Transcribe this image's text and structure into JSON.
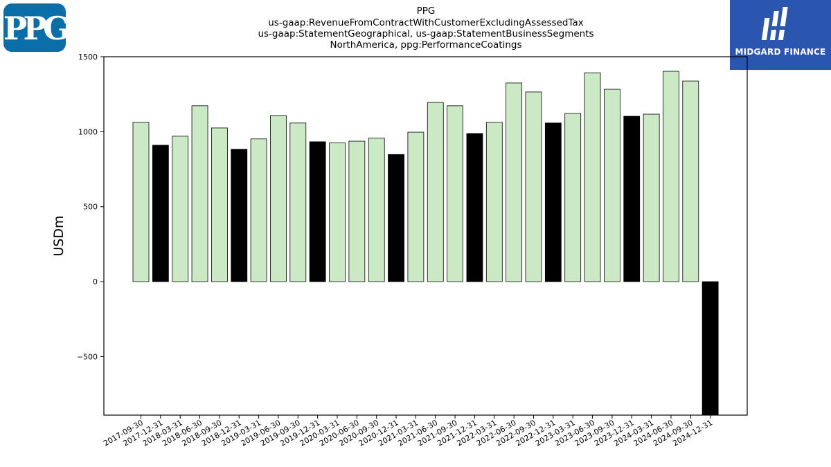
{
  "header": {
    "title_lines": [
      "PPG",
      "us-gaap:RevenueFromContractWithCustomerExcludingAssessedTax",
      "us-gaap:StatementGeographical, us-gaap:StatementBusinessSegments",
      "NorthAmerica, ppg:PerformanceCoatings"
    ]
  },
  "logos": {
    "left": {
      "icon": "ppg-logo",
      "text": "PPG",
      "color": "#0a6fa8"
    },
    "right": {
      "icon": "midgard-finance-logo",
      "text": "MIDGARD FINANCE",
      "color": "#2a56b0"
    }
  },
  "chart_data": {
    "type": "bar",
    "title": "",
    "xlabel": "",
    "ylabel": "USDm",
    "ylim": [
      -890,
      1500
    ],
    "yticks": [
      -500,
      0,
      500,
      1000,
      1500
    ],
    "ytick_labels": [
      "−500",
      "0",
      "500",
      "1000",
      "1500"
    ],
    "categories": [
      "2017-09-30",
      "2017-12-31",
      "2018-03-31",
      "2018-06-30",
      "2018-09-30",
      "2018-12-31",
      "2019-03-31",
      "2019-06-30",
      "2019-09-30",
      "2019-12-31",
      "2020-03-31",
      "2020-06-30",
      "2020-09-30",
      "2020-12-31",
      "2021-03-31",
      "2021-06-30",
      "2021-09-30",
      "2021-12-31",
      "2022-03-31",
      "2022-06-30",
      "2022-09-30",
      "2022-12-31",
      "2023-03-31",
      "2023-06-30",
      "2023-09-30",
      "2023-12-31",
      "2024-03-31",
      "2024-06-30",
      "2024-09-30",
      "2024-12-31"
    ],
    "values": [
      1063,
      910,
      970,
      1173,
      1025,
      883,
      952,
      1108,
      1058,
      933,
      925,
      937,
      957,
      848,
      997,
      1195,
      1173,
      988,
      1063,
      1325,
      1265,
      1058,
      1122,
      1393,
      1283,
      1103,
      1117,
      1403,
      1338,
      -890
    ],
    "colors": {
      "quarter": "#cce9c5",
      "year_end": "#000000",
      "edge": "#000000"
    },
    "grid": false,
    "legend": "none"
  }
}
